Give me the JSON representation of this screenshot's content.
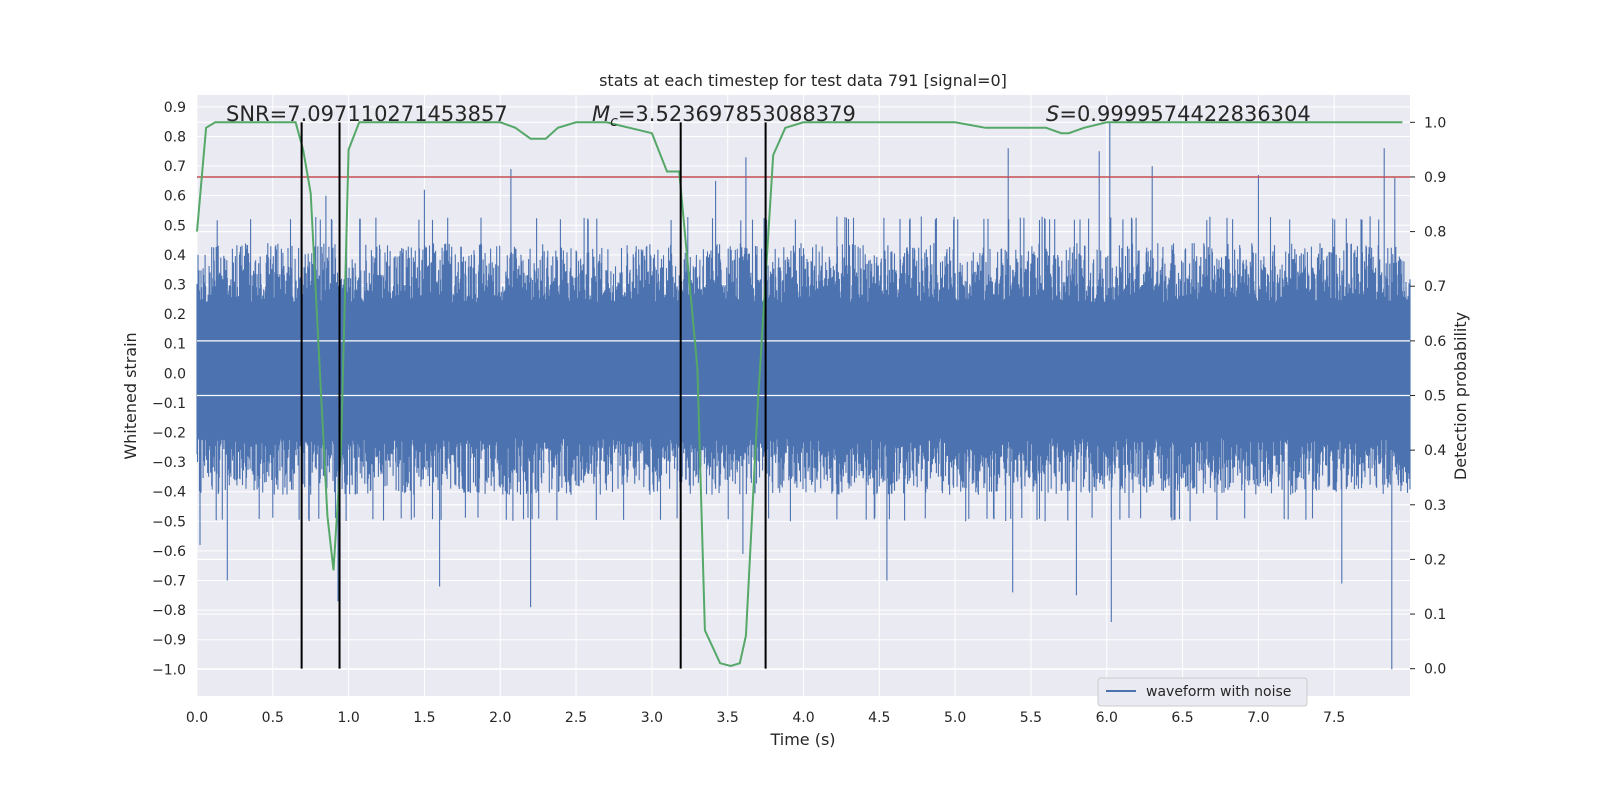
{
  "chart_data": {
    "type": "line",
    "title": "stats at each timestep for test data 791 [signal=0]",
    "xlabel": "Time (s)",
    "ylabel_left": "Whitened strain",
    "ylabel_right": "Detection probability",
    "xlim": [
      0.0,
      8.0
    ],
    "ylim_left": [
      -1.09,
      0.94
    ],
    "ylim_right": [
      -0.05,
      1.05
    ],
    "x_ticks": [
      "0.0",
      "0.5",
      "1.0",
      "1.5",
      "2.0",
      "2.5",
      "3.0",
      "3.5",
      "4.0",
      "4.5",
      "5.0",
      "5.5",
      "6.0",
      "6.5",
      "7.0",
      "7.5"
    ],
    "y_left_ticks": [
      "0.9",
      "0.8",
      "0.7",
      "0.6",
      "0.5",
      "0.4",
      "0.3",
      "0.2",
      "0.1",
      "0.0",
      "−0.1",
      "−0.2",
      "−0.3",
      "−0.4",
      "−0.5",
      "−0.6",
      "−0.7",
      "−0.8",
      "−0.9",
      "−1.0"
    ],
    "y_right_ticks": [
      "1.0",
      "0.9",
      "0.8",
      "0.7",
      "0.6",
      "0.5",
      "0.4",
      "0.3",
      "0.2",
      "0.1",
      "0.0"
    ],
    "annotations": {
      "snr": "SNR=7.097110271453857",
      "mc": "=3.523697853088379",
      "mc_symbol": "M",
      "mc_subscript": "c",
      "s": "=0.9999574422836304",
      "s_symbol": "S"
    },
    "legend": {
      "position": "lower right",
      "label": "waveform with noise"
    },
    "grid": true,
    "colors": {
      "waveform": "#4c72b0",
      "probability": "#55a868",
      "threshold": "#c44e52",
      "vlines": "#000000",
      "background": "#eaeaf2",
      "grid": "#ffffff"
    },
    "threshold": 0.9,
    "vlines_x": [
      0.69,
      0.94,
      3.19,
      3.75
    ],
    "waveform": {
      "description_values": "noise envelope",
      "x_range": [
        0.0,
        8.0
      ],
      "typical_upper": 0.45,
      "typical_lower": -0.42,
      "spikes": [
        {
          "x": 0.02,
          "y": -0.58
        },
        {
          "x": 0.2,
          "y": -0.7
        },
        {
          "x": 0.85,
          "y": 0.6
        },
        {
          "x": 0.93,
          "y": -0.77
        },
        {
          "x": 1.5,
          "y": 0.62
        },
        {
          "x": 1.6,
          "y": -0.72
        },
        {
          "x": 2.07,
          "y": 0.69
        },
        {
          "x": 2.2,
          "y": -0.79
        },
        {
          "x": 3.42,
          "y": 0.65
        },
        {
          "x": 3.62,
          "y": 0.73
        },
        {
          "x": 3.6,
          "y": -0.61
        },
        {
          "x": 4.55,
          "y": -0.7
        },
        {
          "x": 5.38,
          "y": -0.74
        },
        {
          "x": 5.35,
          "y": 0.76
        },
        {
          "x": 5.8,
          "y": -0.75
        },
        {
          "x": 5.95,
          "y": 0.75
        },
        {
          "x": 6.02,
          "y": 0.85
        },
        {
          "x": 6.03,
          "y": -0.84
        },
        {
          "x": 6.3,
          "y": 0.7
        },
        {
          "x": 7.0,
          "y": 0.67
        },
        {
          "x": 7.55,
          "y": -0.71
        },
        {
          "x": 7.83,
          "y": 0.76
        },
        {
          "x": 7.88,
          "y": -1.0
        },
        {
          "x": 7.9,
          "y": 0.66
        }
      ]
    },
    "probability": {
      "x": [
        0.0,
        0.06,
        0.12,
        0.3,
        0.5,
        0.65,
        0.7,
        0.75,
        0.8,
        0.86,
        0.9,
        0.95,
        1.0,
        1.07,
        1.2,
        1.5,
        1.8,
        2.0,
        2.1,
        2.2,
        2.3,
        2.38,
        2.5,
        2.7,
        3.0,
        3.1,
        3.18,
        3.3,
        3.35,
        3.45,
        3.52,
        3.58,
        3.62,
        3.7,
        3.8,
        3.88,
        4.0,
        4.5,
        5.0,
        5.2,
        5.4,
        5.6,
        5.7,
        5.75,
        5.85,
        6.0,
        6.3,
        7.0,
        7.5,
        7.95
      ],
      "y": [
        0.8,
        0.99,
        1.0,
        1.0,
        1.0,
        1.0,
        0.95,
        0.87,
        0.6,
        0.28,
        0.18,
        0.4,
        0.95,
        1.0,
        1.0,
        1.0,
        1.0,
        1.0,
        0.99,
        0.97,
        0.97,
        0.99,
        1.0,
        1.0,
        0.98,
        0.91,
        0.91,
        0.55,
        0.07,
        0.01,
        0.005,
        0.01,
        0.06,
        0.49,
        0.94,
        0.99,
        1.0,
        1.0,
        1.0,
        0.99,
        0.99,
        0.99,
        0.98,
        0.98,
        0.99,
        1.0,
        1.0,
        1.0,
        1.0,
        1.0
      ]
    }
  }
}
